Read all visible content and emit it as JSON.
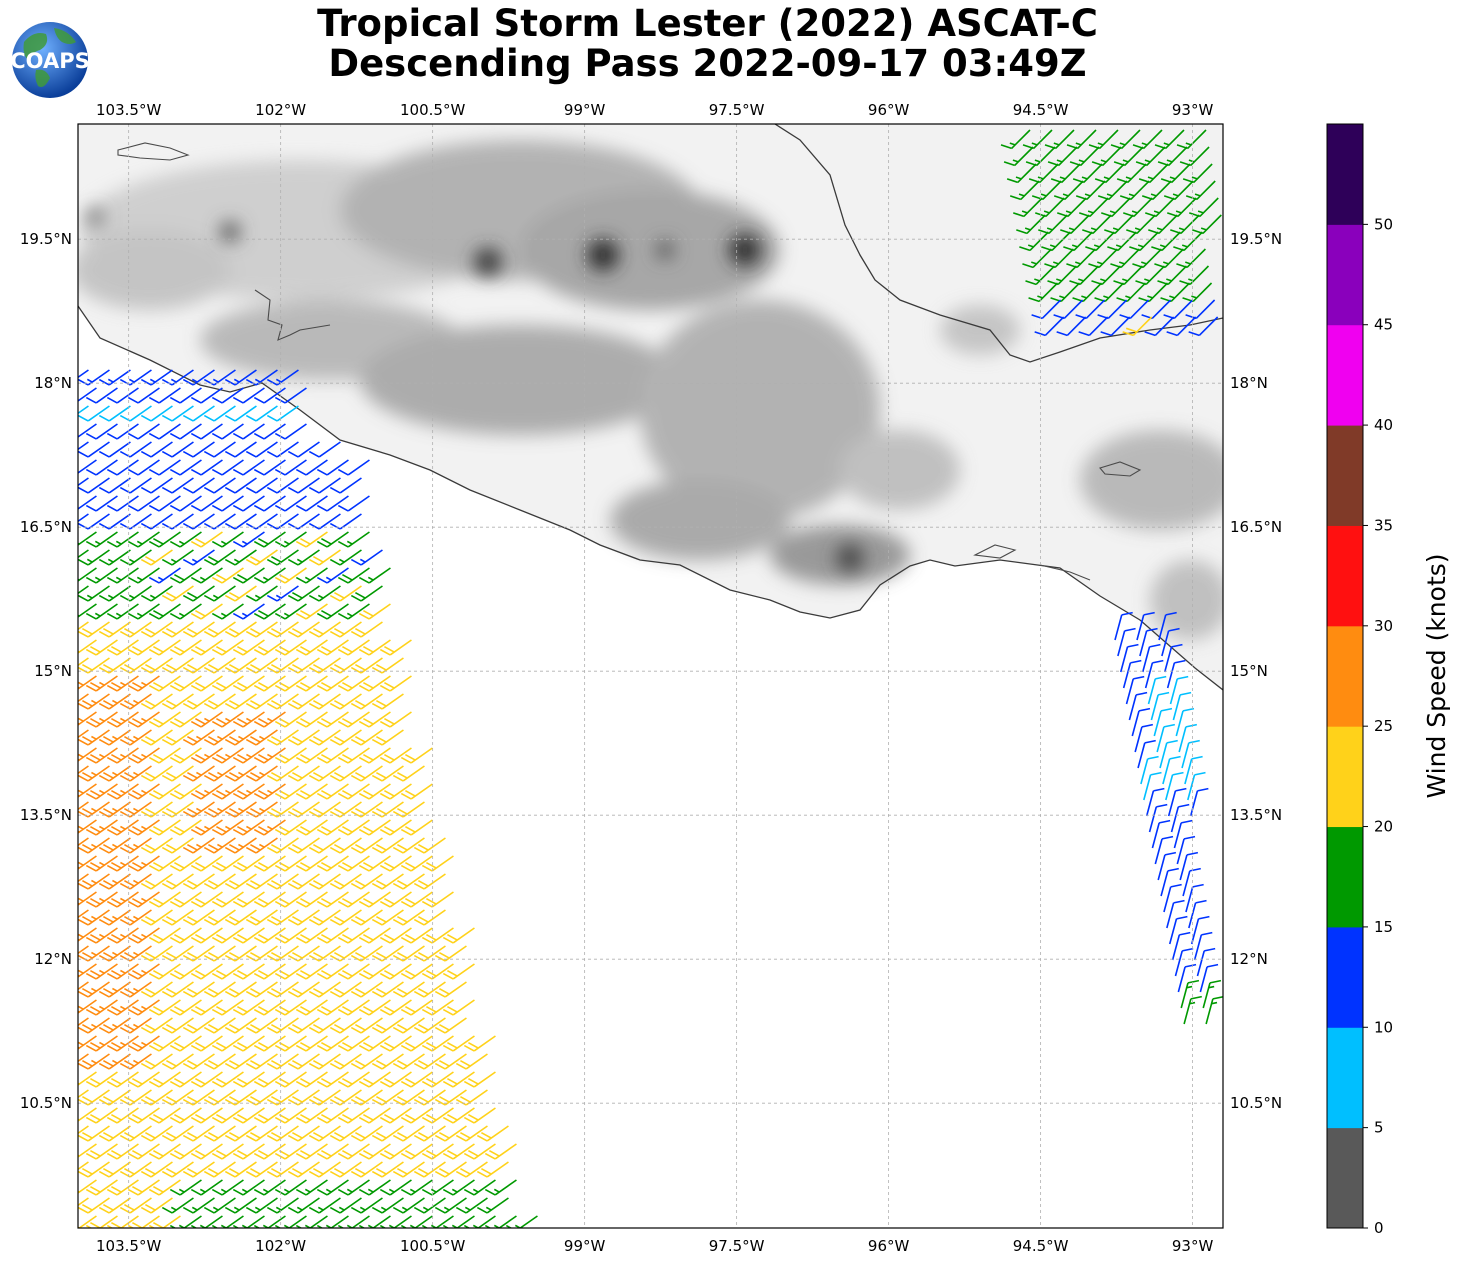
{
  "title": {
    "line1": "Tropical Storm Lester (2022) ASCAT-C",
    "line2": "Descending Pass 2022-09-17 03:49Z"
  },
  "logo": {
    "text": "COAPS",
    "icon": "globe-logo-icon"
  },
  "map": {
    "lon_range": [
      -104.0,
      -92.7
    ],
    "lat_range": [
      9.2,
      20.7
    ],
    "lon_ticks": [
      "103.5°W",
      "102°W",
      "100.5°W",
      "99°W",
      "97.5°W",
      "96°W",
      "94.5°W",
      "93°W"
    ],
    "lon_values": [
      -103.5,
      -102.0,
      -100.5,
      -99.0,
      -97.5,
      -96.0,
      -94.5,
      -93.0
    ],
    "lat_ticks": [
      "19.5°N",
      "18°N",
      "16.5°N",
      "15°N",
      "13.5°N",
      "12°N",
      "10.5°N"
    ],
    "lat_values": [
      19.5,
      18.0,
      16.5,
      15.0,
      13.5,
      12.0,
      10.5
    ],
    "gridlines": true,
    "land_shading": "grayscale topography",
    "coastline_color": "#3a3a3a"
  },
  "colorbar": {
    "label": "Wind Speed (knots)",
    "ticks": [
      "0",
      "5",
      "10",
      "15",
      "20",
      "25",
      "30",
      "35",
      "40",
      "45",
      "50"
    ],
    "colors": [
      "#595959",
      "#00bfff",
      "#0033ff",
      "#009900",
      "#ffd21a",
      "#ff8c10",
      "#ff1010",
      "#803a28",
      "#f000f0",
      "#8a00bc",
      "#2e0059"
    ]
  },
  "swaths": [
    {
      "name": "west",
      "direction_deg": 240
    },
    {
      "name": "north-east",
      "direction_deg": 225
    },
    {
      "name": "south-east",
      "direction_deg": 20
    }
  ]
}
